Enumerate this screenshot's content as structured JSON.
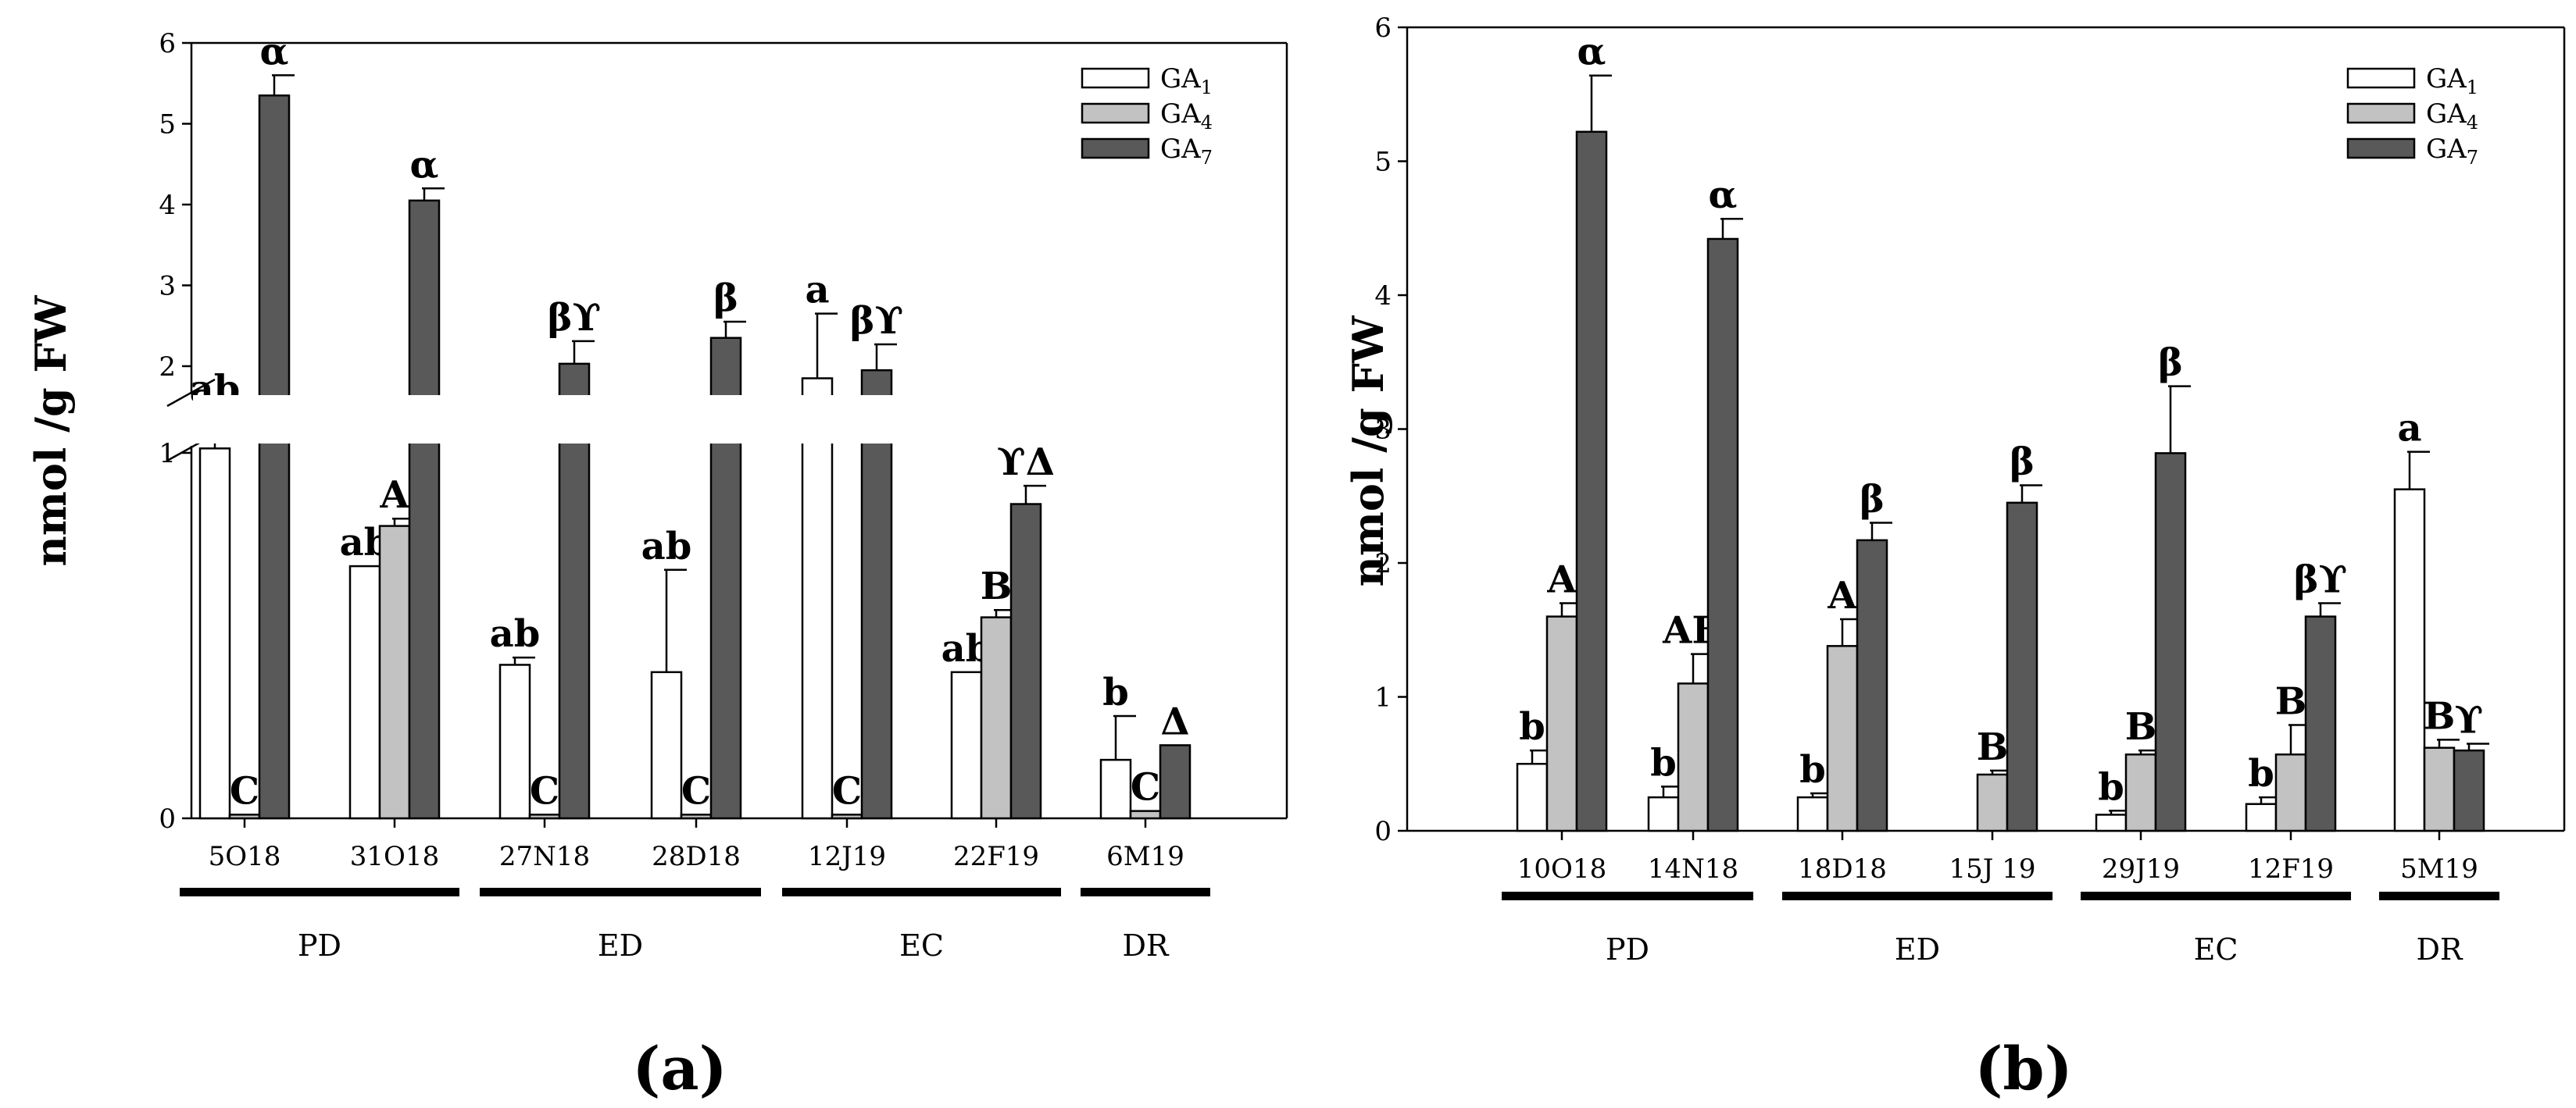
{
  "colors": {
    "GA1": "#ffffff",
    "GA4": "#c2c2c2",
    "GA7": "#595959",
    "stroke": "#000000"
  },
  "chart_data": [
    {
      "id": "a",
      "type": "bar",
      "panel_label": "(a)",
      "ylabel": "nmol /g FW",
      "categories": [
        "5O18",
        "31O18",
        "27N18",
        "28D18",
        "12J19",
        "22F19",
        "6M19"
      ],
      "groups": [
        {
          "label": "PD",
          "from": 0,
          "to": 1
        },
        {
          "label": "ED",
          "from": 2,
          "to": 3
        },
        {
          "label": "EC",
          "from": 4,
          "to": 5
        },
        {
          "label": "DR",
          "from": 6,
          "to": 6
        }
      ],
      "y_lower_ticks": [
        "0",
        "1"
      ],
      "y_upper_ticks": [
        "2",
        "3",
        "4",
        "5",
        "6"
      ],
      "y_axis_break": [
        1,
        1.7
      ],
      "ylim": [
        0,
        6
      ],
      "legend": {
        "position": "top-right",
        "entries": [
          "GA1",
          "GA4",
          "GA7"
        ]
      },
      "series": [
        {
          "name": "GA1",
          "values": [
            1.05,
            0.69,
            0.42,
            0.4,
            1.85,
            0.4,
            0.16
          ],
          "errors": [
            0.4,
            0.0,
            0.02,
            0.28,
            0.8,
            0.0,
            0.12
          ],
          "labels": [
            "ab",
            "ab",
            "ab",
            "ab",
            "a",
            "ab",
            "b"
          ]
        },
        {
          "name": "GA4",
          "values": [
            0.01,
            0.8,
            0.01,
            0.01,
            0.01,
            0.55,
            0.02
          ],
          "errors": [
            0.0,
            0.02,
            0.0,
            0.0,
            0.0,
            0.02,
            0.0
          ],
          "labels": [
            "C",
            "A",
            "C",
            "C",
            "C",
            "B",
            "C"
          ]
        },
        {
          "name": "GA7",
          "values": [
            5.35,
            4.05,
            2.03,
            2.35,
            1.95,
            0.86,
            0.2
          ],
          "errors": [
            0.25,
            0.15,
            0.28,
            0.2,
            0.32,
            0.05,
            0.0
          ],
          "labels": [
            "α",
            "α",
            "βϒ",
            "β",
            "βϒ",
            "ϒΔ",
            "Δ"
          ]
        }
      ]
    },
    {
      "id": "b",
      "type": "bar",
      "panel_label": "(b)",
      "ylabel": "nmol /g FW",
      "categories": [
        "10O18",
        "14N18",
        "18D18",
        "15J 19",
        "29J19",
        "12F19",
        "5M19"
      ],
      "groups": [
        {
          "label": "PD",
          "from": 0,
          "to": 1
        },
        {
          "label": "ED",
          "from": 2,
          "to": 3
        },
        {
          "label": "EC",
          "from": 4,
          "to": 5
        },
        {
          "label": "DR",
          "from": 6,
          "to": 6
        }
      ],
      "yticks": [
        "0",
        "1",
        "2",
        "3",
        "4",
        "5",
        "6"
      ],
      "ylim": [
        0,
        6
      ],
      "legend": {
        "position": "top-right",
        "entries": [
          "GA1",
          "GA4",
          "GA7"
        ]
      },
      "series": [
        {
          "name": "GA1",
          "values": [
            0.5,
            0.25,
            0.25,
            0,
            0.12,
            0.2,
            2.55
          ],
          "errors": [
            0.1,
            0.08,
            0.03,
            0,
            0.03,
            0.05,
            0.28
          ],
          "labels": [
            "b",
            "b",
            "b",
            "",
            "b",
            "b",
            "a"
          ]
        },
        {
          "name": "GA4",
          "values": [
            1.6,
            1.1,
            1.38,
            0.42,
            0.57,
            0.57,
            0.62
          ],
          "errors": [
            0.1,
            0.22,
            0.2,
            0.03,
            0.03,
            0.22,
            0.06
          ],
          "labels": [
            "A",
            "AB",
            "A",
            "B",
            "B",
            "B",
            "B"
          ]
        },
        {
          "name": "GA7",
          "values": [
            5.22,
            4.42,
            2.17,
            2.45,
            2.82,
            1.6,
            0.6
          ],
          "errors": [
            0.42,
            0.15,
            0.13,
            0.13,
            0.5,
            0.1,
            0.05
          ],
          "labels": [
            "α",
            "α",
            "β",
            "β",
            "β",
            "βϒ",
            "ϒ"
          ]
        }
      ]
    }
  ]
}
